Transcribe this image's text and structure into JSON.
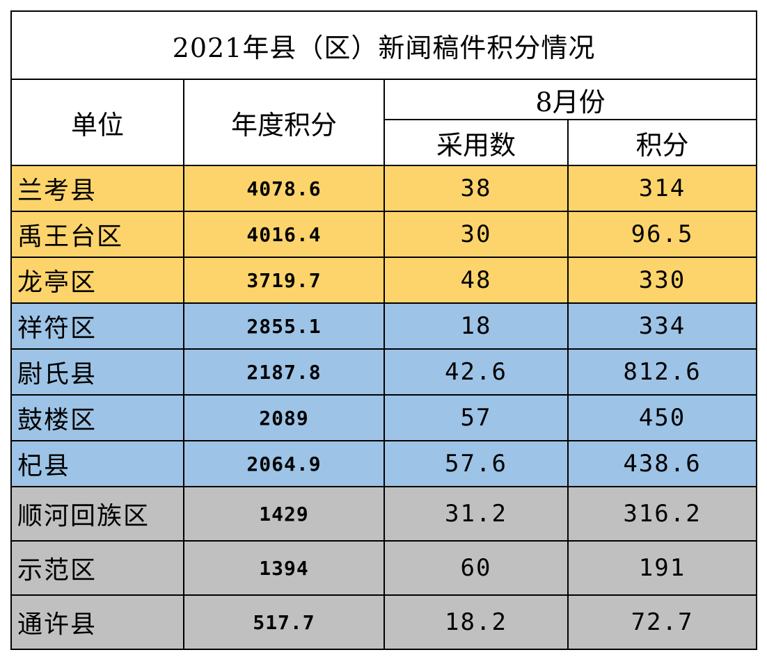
{
  "colors": {
    "tier_gold": "#fcd46b",
    "tier_blue": "#9dc3e6",
    "tier_gray": "#c0c0c0"
  },
  "chart_data": {
    "type": "table",
    "title": "2021年县（区）新闻稿件积分情况",
    "headers": {
      "unit": "单位",
      "annual": "年度积分",
      "month": "8月份",
      "adopted": "采用数",
      "points": "积分"
    },
    "rows": [
      {
        "unit": "兰考县",
        "annual": "4078.6",
        "adopted": "38",
        "points": "314",
        "tier": "gold"
      },
      {
        "unit": "禹王台区",
        "annual": "4016.4",
        "adopted": "30",
        "points": "96.5",
        "tier": "gold"
      },
      {
        "unit": "龙亭区",
        "annual": "3719.7",
        "adopted": "48",
        "points": "330",
        "tier": "gold"
      },
      {
        "unit": "祥符区",
        "annual": "2855.1",
        "adopted": "18",
        "points": "334",
        "tier": "blue"
      },
      {
        "unit": "尉氏县",
        "annual": "2187.8",
        "adopted": "42.6",
        "points": "812.6",
        "tier": "blue"
      },
      {
        "unit": "鼓楼区",
        "annual": "2089",
        "adopted": "57",
        "points": "450",
        "tier": "blue"
      },
      {
        "unit": "杞县",
        "annual": "2064.9",
        "adopted": "57.6",
        "points": "438.6",
        "tier": "blue"
      },
      {
        "unit": "顺河回族区",
        "annual": "1429",
        "adopted": "31.2",
        "points": "316.2",
        "tier": "gray"
      },
      {
        "unit": "示范区",
        "annual": "1394",
        "adopted": "60",
        "points": "191",
        "tier": "gray"
      },
      {
        "unit": "通许县",
        "annual": "517.7",
        "adopted": "18.2",
        "points": "72.7",
        "tier": "gray"
      }
    ]
  }
}
